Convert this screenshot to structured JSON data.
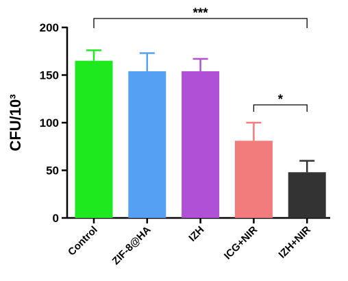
{
  "chart_data": {
    "type": "bar",
    "ylabel": "CFU/10³",
    "categories": [
      "Control",
      "ZIF-8@HA",
      "IZH",
      "ICG+NIR",
      "IZH+NIR"
    ],
    "values": [
      165,
      154,
      154,
      81,
      48
    ],
    "errors": [
      11,
      19,
      13,
      19,
      12
    ],
    "colors": [
      "#1ee81e",
      "#55a0f2",
      "#b050d6",
      "#f27b7b",
      "#333333"
    ],
    "ylim": [
      0,
      200
    ],
    "yticks": [
      0,
      50,
      100,
      150,
      200
    ],
    "annotations": [
      {
        "text": "***",
        "between": [
          "Control",
          "IZH+NIR"
        ]
      },
      {
        "text": "*",
        "between": [
          "ICG+NIR",
          "IZH+NIR"
        ]
      }
    ]
  }
}
